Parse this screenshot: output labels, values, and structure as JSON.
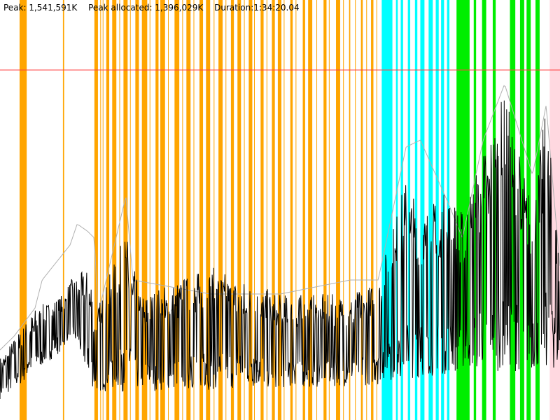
{
  "header": {
    "peak": "Peak: 1,541,591K",
    "peak_allocated": "Peak allocated: 1,396,029K",
    "duration": "Duration:1:34:20.04"
  },
  "chart_data": {
    "type": "line",
    "title": "",
    "xlabel": "",
    "ylabel": "",
    "x_unit": "minutes",
    "y_unit": "K",
    "xlim": [
      0,
      94.33
    ],
    "ylim": [
      0,
      1919000
    ],
    "grid": false,
    "reference_line": {
      "value": 1599000,
      "color": "#ff4040"
    },
    "colors": {
      "used": "#000000",
      "peak": "#b0b0b0",
      "band_orange": "#ffa500",
      "band_cyan": "#00ffff",
      "band_green": "#00ee00",
      "band_pink": "#ffd8e0"
    },
    "bands": [
      {
        "kind": "orange",
        "from": 3.3,
        "to": 4.5
      },
      {
        "kind": "orange",
        "from": 10.6,
        "to": 10.8
      },
      {
        "kind": "orange",
        "from": 15.9,
        "to": 16.5
      },
      {
        "kind": "orange",
        "from": 16.9,
        "to": 17.0
      },
      {
        "kind": "orange",
        "from": 17.3,
        "to": 17.4
      },
      {
        "kind": "orange",
        "from": 17.9,
        "to": 18.4
      },
      {
        "kind": "orange",
        "from": 18.9,
        "to": 19.6
      },
      {
        "kind": "orange",
        "from": 20.1,
        "to": 20.2
      },
      {
        "kind": "orange",
        "from": 20.8,
        "to": 21.5
      },
      {
        "kind": "orange",
        "from": 21.9,
        "to": 22.0
      },
      {
        "kind": "orange",
        "from": 22.8,
        "to": 23.4
      },
      {
        "kind": "orange",
        "from": 23.9,
        "to": 24.8
      },
      {
        "kind": "orange",
        "from": 25.2,
        "to": 25.3
      },
      {
        "kind": "orange",
        "from": 26.2,
        "to": 26.7
      },
      {
        "kind": "orange",
        "from": 27.0,
        "to": 27.8
      },
      {
        "kind": "orange",
        "from": 28.3,
        "to": 28.4
      },
      {
        "kind": "orange",
        "from": 29.4,
        "to": 30.2
      },
      {
        "kind": "orange",
        "from": 30.7,
        "to": 30.8
      },
      {
        "kind": "orange",
        "from": 31.4,
        "to": 32.1
      },
      {
        "kind": "orange",
        "from": 32.6,
        "to": 32.7
      },
      {
        "kind": "orange",
        "from": 33.6,
        "to": 34.2
      },
      {
        "kind": "orange",
        "from": 34.7,
        "to": 35.4
      },
      {
        "kind": "orange",
        "from": 36.0,
        "to": 36.1
      },
      {
        "kind": "orange",
        "from": 36.8,
        "to": 37.5
      },
      {
        "kind": "orange",
        "from": 38.0,
        "to": 38.1
      },
      {
        "kind": "orange",
        "from": 38.9,
        "to": 39.4
      },
      {
        "kind": "orange",
        "from": 40.0,
        "to": 40.6
      },
      {
        "kind": "orange",
        "from": 41.1,
        "to": 41.2
      },
      {
        "kind": "orange",
        "from": 41.9,
        "to": 42.5
      },
      {
        "kind": "orange",
        "from": 42.8,
        "to": 42.9
      },
      {
        "kind": "orange",
        "from": 43.9,
        "to": 44.4
      },
      {
        "kind": "orange",
        "from": 44.9,
        "to": 45.0
      },
      {
        "kind": "orange",
        "from": 45.8,
        "to": 46.3
      },
      {
        "kind": "orange",
        "from": 46.8,
        "to": 47.4
      },
      {
        "kind": "orange",
        "from": 47.8,
        "to": 47.9
      },
      {
        "kind": "orange",
        "from": 48.9,
        "to": 49.3
      },
      {
        "kind": "orange",
        "from": 49.8,
        "to": 49.9
      },
      {
        "kind": "orange",
        "from": 51.0,
        "to": 51.4
      },
      {
        "kind": "orange",
        "from": 51.9,
        "to": 52.6
      },
      {
        "kind": "orange",
        "from": 53.3,
        "to": 53.4
      },
      {
        "kind": "orange",
        "from": 54.5,
        "to": 55.0
      },
      {
        "kind": "orange",
        "from": 55.4,
        "to": 55.5
      },
      {
        "kind": "orange",
        "from": 56.6,
        "to": 57.3
      },
      {
        "kind": "orange",
        "from": 57.8,
        "to": 57.9
      },
      {
        "kind": "orange",
        "from": 58.8,
        "to": 59.0
      },
      {
        "kind": "orange",
        "from": 59.8,
        "to": 59.9
      },
      {
        "kind": "orange",
        "from": 60.8,
        "to": 61.1
      },
      {
        "kind": "orange",
        "from": 61.7,
        "to": 61.8
      },
      {
        "kind": "orange",
        "from": 62.5,
        "to": 62.9
      },
      {
        "kind": "orange",
        "from": 63.4,
        "to": 63.5
      },
      {
        "kind": "cyan",
        "from": 64.3,
        "to": 66.1
      },
      {
        "kind": "cyan",
        "from": 66.7,
        "to": 67.0
      },
      {
        "kind": "cyan",
        "from": 67.5,
        "to": 67.9
      },
      {
        "kind": "cyan",
        "from": 68.7,
        "to": 69.1
      },
      {
        "kind": "cyan",
        "from": 69.9,
        "to": 70.3
      },
      {
        "kind": "cyan",
        "from": 70.8,
        "to": 71.5
      },
      {
        "kind": "cyan",
        "from": 72.2,
        "to": 72.9
      },
      {
        "kind": "cyan",
        "from": 73.4,
        "to": 73.9
      },
      {
        "kind": "cyan",
        "from": 74.3,
        "to": 74.8
      },
      {
        "kind": "cyan",
        "from": 75.3,
        "to": 75.7
      },
      {
        "kind": "green",
        "from": 76.9,
        "to": 79.1
      },
      {
        "kind": "green",
        "from": 79.8,
        "to": 80.2
      },
      {
        "kind": "green",
        "from": 81.2,
        "to": 81.9
      },
      {
        "kind": "green",
        "from": 83.0,
        "to": 83.5
      },
      {
        "kind": "green",
        "from": 85.9,
        "to": 86.8
      },
      {
        "kind": "green",
        "from": 87.6,
        "to": 88.3
      },
      {
        "kind": "green",
        "from": 88.7,
        "to": 89.4
      },
      {
        "kind": "green",
        "from": 90.2,
        "to": 90.9
      },
      {
        "kind": "pink",
        "from": 92.6,
        "to": 94.33
      }
    ],
    "series": [
      {
        "id": "used_max",
        "x": [
          0,
          3.5,
          5.9,
          10.6,
          11.8,
          15.3,
          15.9,
          21.2,
          23.6,
          35.4,
          47.2,
          59.0,
          63.7,
          68.4,
          70.8,
          75.5,
          77.9,
          82.6,
          85.0,
          89.7,
          92.0,
          94.3
        ],
        "y": [
          287800,
          415700,
          511700,
          575600,
          639600,
          703600,
          479700,
          863500,
          575600,
          703600,
          575600,
          575600,
          639600,
          1119300,
          959400,
          1055300,
          959400,
          1343200,
          1503100,
          991400,
          1439100,
          767500
        ]
      },
      {
        "id": "used_min",
        "x": [
          0,
          3.5,
          4.7,
          10.6,
          11.8,
          15.9,
          47.2,
          63.7,
          64.3,
          75.5,
          77.9,
          94.3
        ],
        "y": [
          95900,
          159900,
          191900,
          319800,
          383800,
          127900,
          143900,
          159900,
          175900,
          207900,
          223900,
          223900
        ]
      },
      {
        "id": "peak",
        "x": [
          0,
          2.4,
          5.9,
          7.1,
          11.8,
          13.0,
          14.7,
          15.9,
          16.5,
          21.2,
          22.4,
          35.4,
          47.2,
          59.0,
          63.7,
          68.4,
          70.8,
          75.5,
          77.9,
          81.4,
          85.0,
          89.7,
          92.0,
          94.3
        ],
        "y": [
          319800,
          383800,
          511700,
          639600,
          799500,
          895400,
          863500,
          831500,
          479700,
          1023400,
          639600,
          575600,
          575600,
          639600,
          639600,
          1247200,
          1279100,
          991400,
          831500,
          1279100,
          1535000,
          1119300,
          1439100,
          703600
        ]
      }
    ]
  }
}
